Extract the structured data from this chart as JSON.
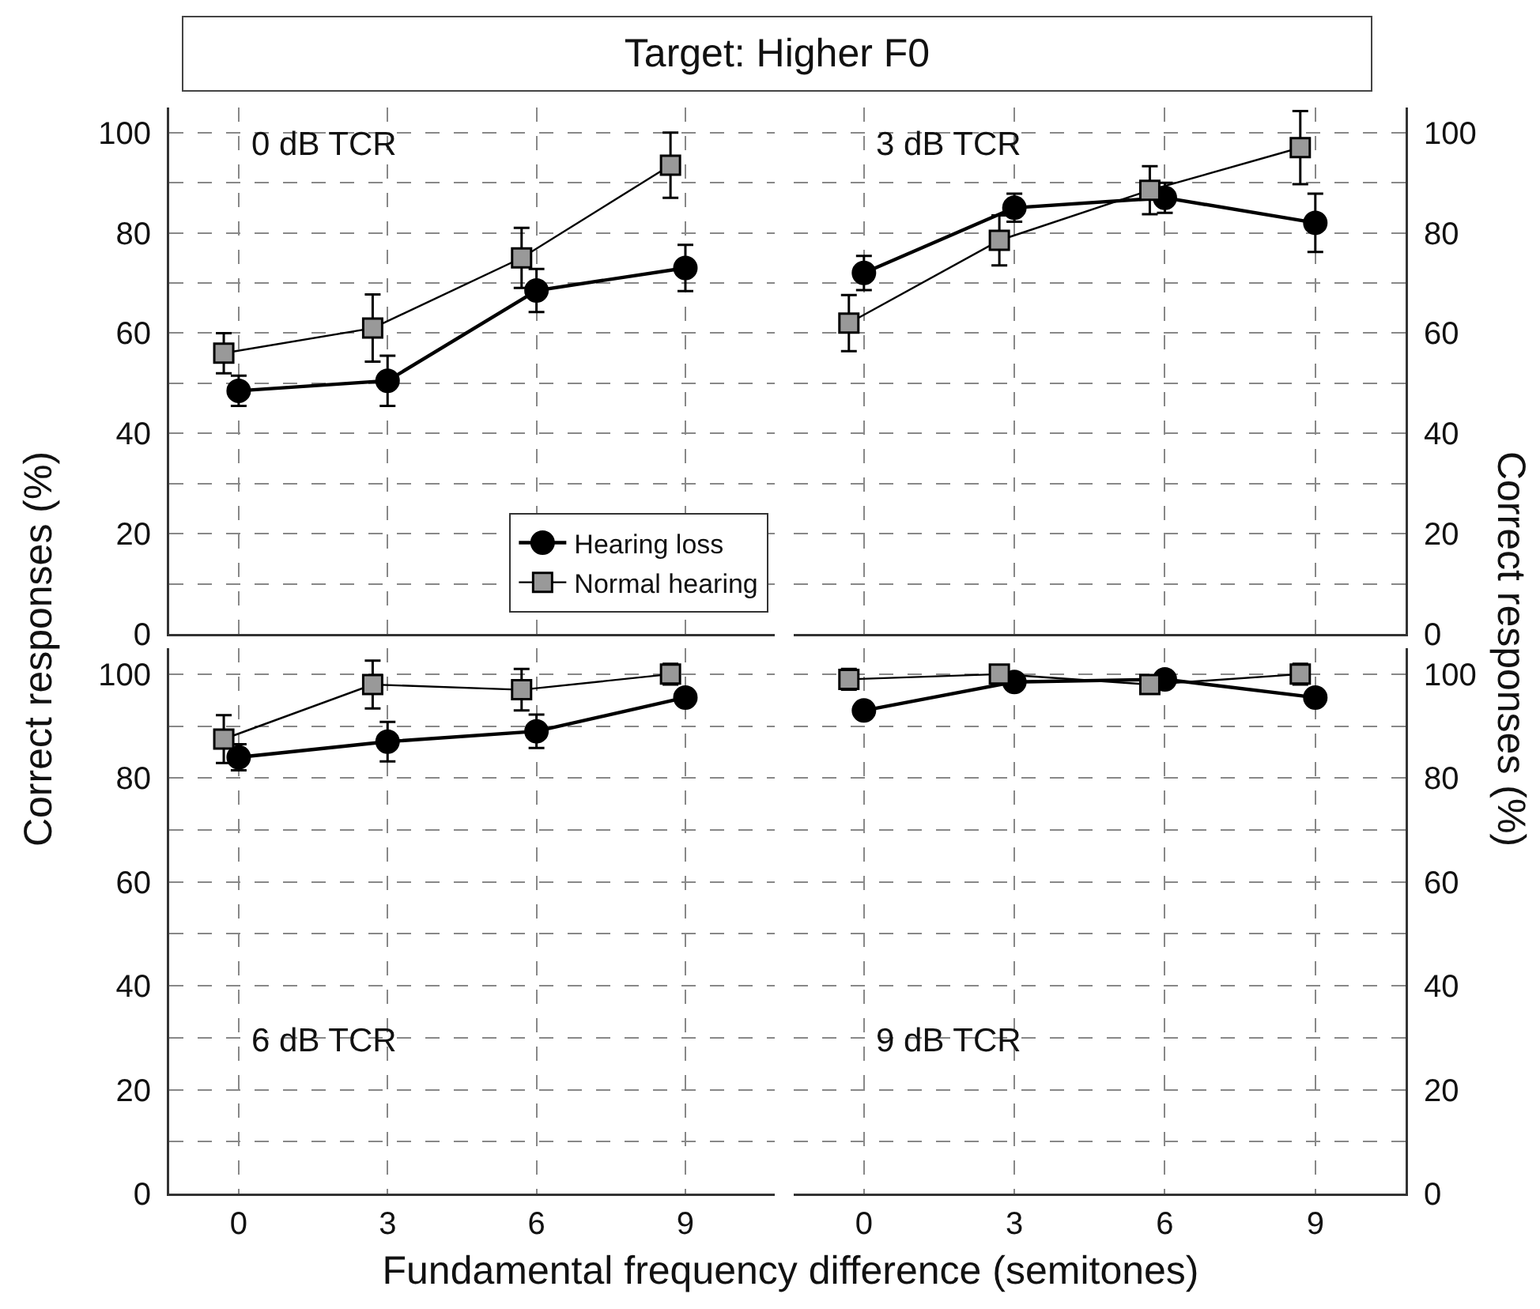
{
  "chart_data": [
    {
      "type": "line",
      "title": "Target: Higher F0",
      "ylabel": "Correct responses (%)",
      "annotations": [
        "0 dB TCR"
      ],
      "xlim": [
        -1.4,
        10.8
      ],
      "xticks": [
        0,
        3,
        6,
        9
      ],
      "ylim": [
        0,
        105
      ],
      "yticks": [
        0,
        {
          "value": 10,
          "label": null
        },
        20,
        {
          "value": 30,
          "label": null
        },
        40,
        {
          "value": 50,
          "label": null
        },
        60,
        {
          "value": 70,
          "label": null
        },
        80,
        {
          "value": 90,
          "label": null
        },
        100
      ],
      "grid": true,
      "legend": "bottom right",
      "tick_labels": "y",
      "series": [
        {
          "name": "Hearing loss",
          "color": "#000000",
          "marker": "circle",
          "x": [
            0,
            3,
            6,
            9
          ],
          "values": [
            48.5,
            50.5,
            68.5,
            73
          ],
          "errors": [
            3,
            5,
            4.3,
            4.6
          ]
        },
        {
          "name": "Normal hearing",
          "color": "#999999",
          "marker": "square",
          "x": [
            -0.3,
            2.7,
            5.7,
            8.7
          ],
          "values": [
            56,
            61,
            75,
            93.5
          ],
          "errors": [
            4,
            6.7,
            6,
            6.5
          ]
        }
      ]
    },
    {
      "type": "line",
      "y2label": "Correct responses (%)",
      "annotations": [
        "3 dB TCR"
      ],
      "xlim": [
        -1.4,
        10.8
      ],
      "xticks": [
        0,
        3,
        6,
        9
      ],
      "y2lim": [
        0,
        105
      ],
      "y2ticks": [
        0,
        {
          "value": 10,
          "label": null
        },
        20,
        {
          "value": 30,
          "label": null
        },
        40,
        {
          "value": 50,
          "label": null
        },
        60,
        {
          "value": 70,
          "label": null
        },
        80,
        {
          "value": 90,
          "label": null
        },
        100
      ],
      "grid": true,
      "tick_labels": "y",
      "series": [
        {
          "color": "#000000",
          "marker": "circle",
          "axis": "y2",
          "x": [
            0,
            3,
            6,
            9
          ],
          "values": [
            72,
            85,
            87,
            82
          ],
          "errors": [
            3.4,
            2.8,
            3,
            5.8
          ]
        },
        {
          "color": "#999999",
          "marker": "square",
          "axis": "y2",
          "x": [
            -0.3,
            2.7,
            5.7,
            8.7
          ],
          "values": [
            62,
            78.5,
            88.5,
            97
          ],
          "errors": [
            5.6,
            5,
            4.8,
            7.3
          ]
        }
      ]
    },
    {
      "type": "line",
      "xlabel": "Fundamental frequency difference (semitones)",
      "annotations": [
        "6 dB TCR"
      ],
      "xlim": [
        -1.4,
        10.8
      ],
      "xticks": [
        0,
        3,
        6,
        9
      ],
      "ylim": [
        0,
        105
      ],
      "yticks": [
        0,
        {
          "value": 10,
          "label": null
        },
        20,
        {
          "value": 30,
          "label": null
        },
        40,
        {
          "value": 50,
          "label": null
        },
        60,
        {
          "value": 70,
          "label": null
        },
        80,
        {
          "value": 90,
          "label": null
        },
        100
      ],
      "grid": true,
      "series": [
        {
          "color": "#000000",
          "marker": "circle",
          "x": [
            0,
            3,
            6,
            9
          ],
          "values": [
            84,
            87,
            89,
            95.5
          ],
          "errors": [
            2.5,
            3.8,
            3.2,
            null
          ]
        },
        {
          "color": "#999999",
          "marker": "square",
          "x": [
            -0.3,
            2.7,
            5.7,
            8.7
          ],
          "values": [
            87.5,
            98,
            97,
            100
          ],
          "errors": [
            4.6,
            4.6,
            4,
            2
          ]
        }
      ]
    },
    {
      "type": "line",
      "annotations": [
        "9 dB TCR"
      ],
      "xlim": [
        -1.4,
        10.8
      ],
      "xticks": [
        0,
        3,
        6,
        9
      ],
      "y2lim": [
        0,
        105
      ],
      "y2ticks": [
        0,
        {
          "value": 10,
          "label": null
        },
        20,
        {
          "value": 30,
          "label": null
        },
        40,
        {
          "value": 50,
          "label": null
        },
        60,
        {
          "value": 70,
          "label": null
        },
        80,
        {
          "value": 90,
          "label": null
        },
        100
      ],
      "grid": true,
      "series": [
        {
          "color": "#000000",
          "marker": "circle",
          "axis": "y2",
          "x": [
            0,
            3,
            6,
            9
          ],
          "values": [
            93,
            98.5,
            99,
            95.5
          ],
          "errors": [
            1.5,
            1.5,
            null,
            null
          ]
        },
        {
          "color": "#999999",
          "marker": "square",
          "axis": "y2",
          "x": [
            -0.3,
            2.7,
            5.7,
            8.7
          ],
          "values": [
            99,
            100,
            98,
            100
          ],
          "errors": [
            2,
            null,
            null,
            2
          ]
        }
      ]
    }
  ]
}
